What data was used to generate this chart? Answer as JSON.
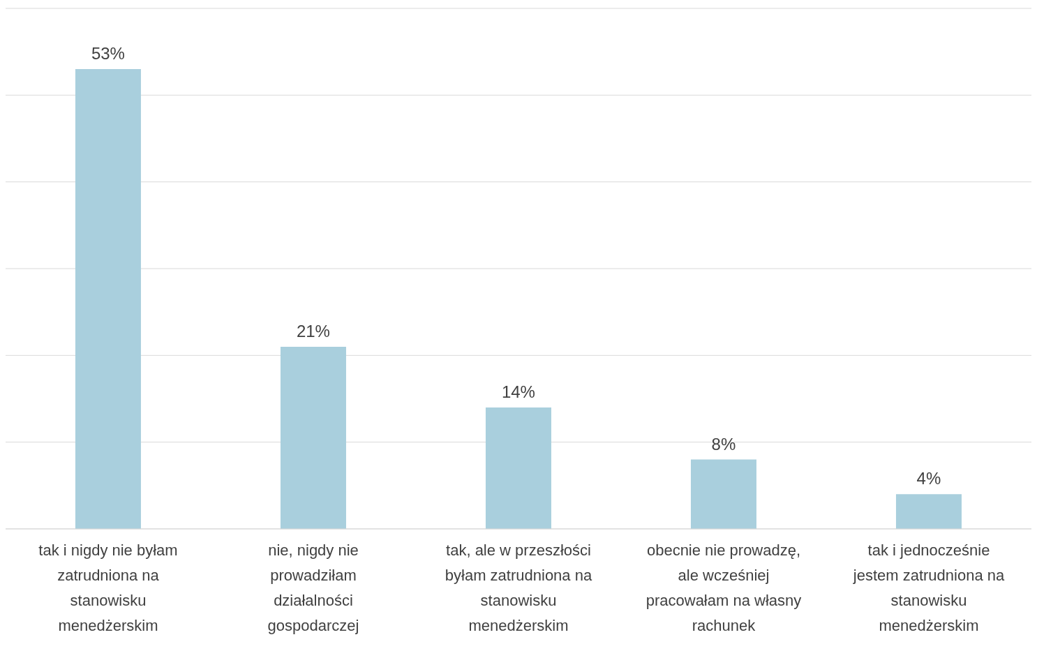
{
  "chart_data": {
    "type": "bar",
    "categories": [
      "tak i nigdy nie byłam zatrudniona na stanowisku menedżerskim",
      "nie, nigdy nie prowadziłam działalności gospodarczej",
      "tak, ale w przeszłości byłam zatrudniona na stanowisku menedżerskim",
      "obecnie nie prowadzę, ale wcześniej pracowałam na własny rachunek",
      "tak i jednocześnie jestem zatrudniona na stanowisku menedżerskim"
    ],
    "values": [
      53,
      21,
      14,
      8,
      4
    ],
    "value_labels": [
      "53%",
      "21%",
      "14%",
      "8%",
      "4%"
    ],
    "color": "#a9cfdd",
    "ylim": [
      0,
      60
    ],
    "yticks": [
      {
        "value": 0,
        "label": null
      },
      {
        "value": 10,
        "label": null
      },
      {
        "value": 20,
        "label": null
      },
      {
        "value": 30,
        "label": null
      },
      {
        "value": 40,
        "label": null
      },
      {
        "value": 50,
        "label": null
      },
      {
        "value": 60,
        "label": null
      }
    ],
    "tick_labels": "x",
    "grid": "y",
    "legend": false
  }
}
